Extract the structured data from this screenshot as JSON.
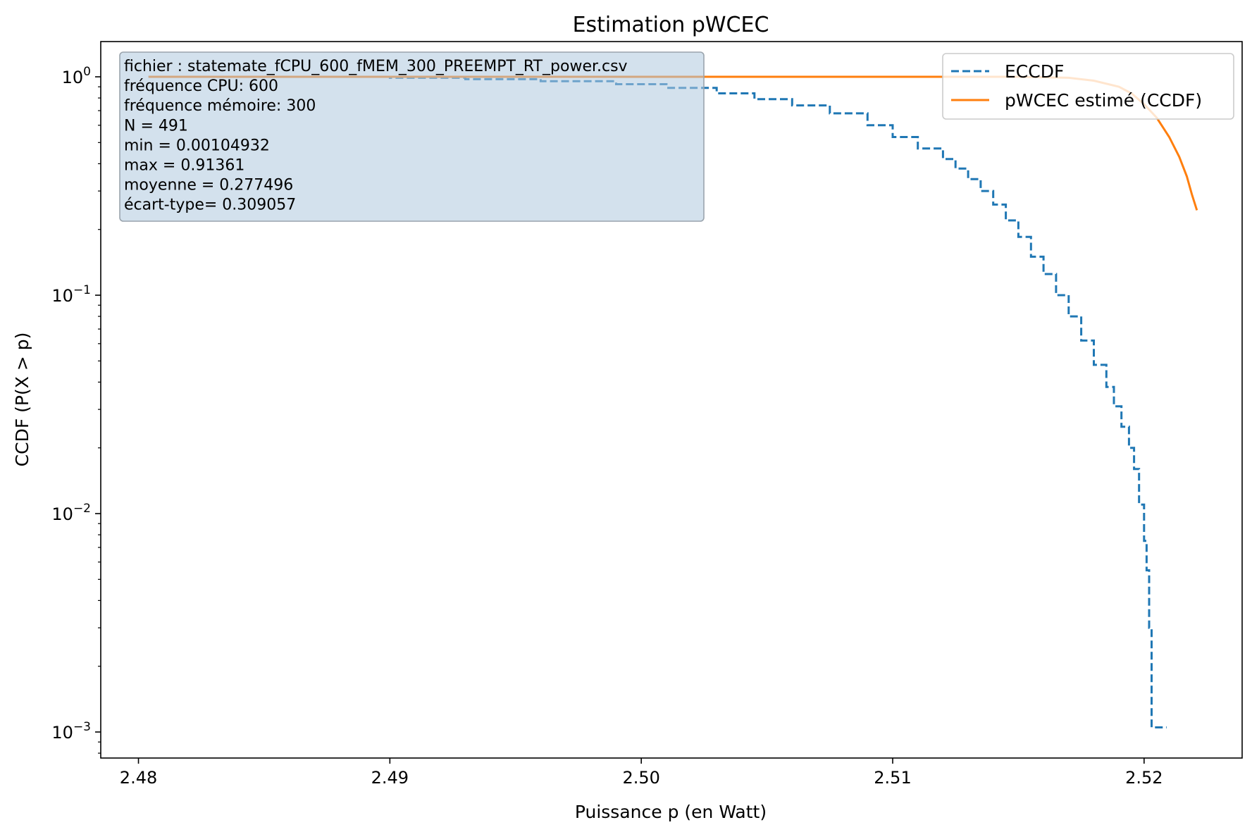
{
  "chart_data": {
    "type": "line",
    "title": "Estimation pWCEC",
    "xlabel": "Puissance p (en Watt)",
    "ylabel": "CCDF (P(X > p)",
    "yscale": "log",
    "xlim": [
      2.4785,
      2.5239
    ],
    "ylim": [
      0.00076,
      1.45
    ],
    "x_ticks": [
      {
        "value": 2.48,
        "label": "2.48"
      },
      {
        "value": 2.49,
        "label": "2.49"
      },
      {
        "value": 2.5,
        "label": "2.50"
      },
      {
        "value": 2.51,
        "label": "2.51"
      },
      {
        "value": 2.52,
        "label": "2.52"
      }
    ],
    "y_ticks": [
      {
        "value": 1,
        "base": "10",
        "exp": "0"
      },
      {
        "value": 0.1,
        "base": "10",
        "exp": "−1"
      },
      {
        "value": 0.01,
        "base": "10",
        "exp": "−2"
      },
      {
        "value": 0.001,
        "base": "10",
        "exp": "−3"
      }
    ],
    "grid": false,
    "legend_position": "top-right",
    "series": [
      {
        "name": "ECCDF",
        "color": "#1f77b4",
        "style": "dashed",
        "points": [
          [
            2.4804,
            1.0
          ],
          [
            2.486,
            1.0
          ],
          [
            2.49,
            0.99
          ],
          [
            2.493,
            0.975
          ],
          [
            2.496,
            0.955
          ],
          [
            2.499,
            0.925
          ],
          [
            2.501,
            0.89
          ],
          [
            2.503,
            0.84
          ],
          [
            2.5045,
            0.79
          ],
          [
            2.506,
            0.74
          ],
          [
            2.5075,
            0.68
          ],
          [
            2.509,
            0.6
          ],
          [
            2.51,
            0.53
          ],
          [
            2.511,
            0.47
          ],
          [
            2.512,
            0.42
          ],
          [
            2.5125,
            0.38
          ],
          [
            2.513,
            0.34
          ],
          [
            2.5135,
            0.3
          ],
          [
            2.514,
            0.26
          ],
          [
            2.5145,
            0.22
          ],
          [
            2.515,
            0.185
          ],
          [
            2.5155,
            0.15
          ],
          [
            2.516,
            0.125
          ],
          [
            2.5165,
            0.1
          ],
          [
            2.517,
            0.08
          ],
          [
            2.5175,
            0.062
          ],
          [
            2.518,
            0.048
          ],
          [
            2.5185,
            0.038
          ],
          [
            2.5188,
            0.031
          ],
          [
            2.5191,
            0.025
          ],
          [
            2.5194,
            0.02
          ],
          [
            2.5196,
            0.016
          ],
          [
            2.5198,
            0.011
          ],
          [
            2.52,
            0.0075
          ],
          [
            2.5201,
            0.0055
          ],
          [
            2.5202,
            0.003
          ],
          [
            2.5203,
            0.00105
          ],
          [
            2.5209,
            0.00105
          ]
        ]
      },
      {
        "name": "pWCEC estimé (CCDF)",
        "color": "#ff7f0e",
        "style": "solid",
        "points": [
          [
            2.4804,
            1.0
          ],
          [
            2.5,
            1.0
          ],
          [
            2.51,
            1.0
          ],
          [
            2.515,
            1.0
          ],
          [
            2.517,
            0.99
          ],
          [
            2.518,
            0.96
          ],
          [
            2.519,
            0.9
          ],
          [
            2.5195,
            0.84
          ],
          [
            2.52,
            0.75
          ],
          [
            2.5205,
            0.65
          ],
          [
            2.521,
            0.53
          ],
          [
            2.5214,
            0.43
          ],
          [
            2.5217,
            0.35
          ],
          [
            2.5219,
            0.29
          ],
          [
            2.5221,
            0.245
          ]
        ]
      }
    ],
    "annotation_lines": [
      "fichier : statemate_fCPU_600_fMEM_300_PREEMPT_RT_power.csv",
      "fréquence CPU: 600",
      "fréquence mémoire: 300",
      "N = 491",
      "min = 0.00104932",
      "max = 0.91361",
      "moyenne = 0.277496",
      "écart-type= 0.309057"
    ]
  }
}
